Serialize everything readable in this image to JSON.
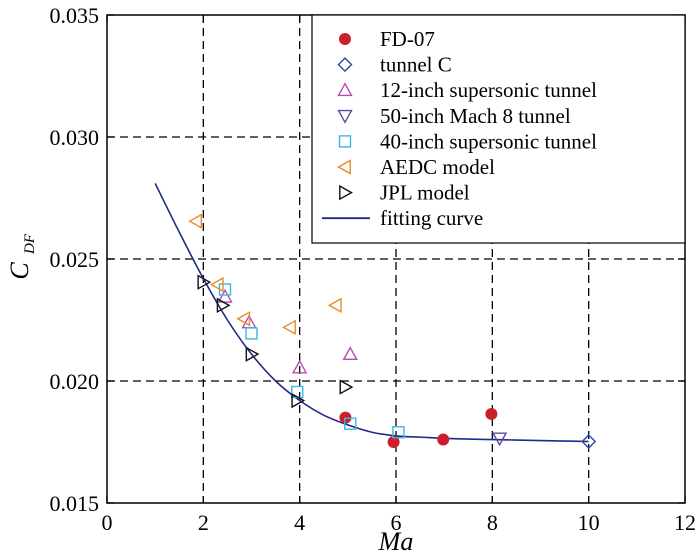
{
  "chart_data": {
    "type": "scatter",
    "xlabel": "Ma",
    "ylabel": {
      "main": "C",
      "sub": "DF"
    },
    "xlim": [
      0,
      12
    ],
    "ylim": [
      0.015,
      0.035
    ],
    "xticks": [
      0,
      2,
      4,
      6,
      8,
      10,
      12
    ],
    "xtick_labels": [
      "0",
      "2",
      "4",
      "6",
      "8",
      "10",
      "12"
    ],
    "yticks": [
      0.015,
      0.02,
      0.025,
      0.03,
      0.035
    ],
    "ytick_labels": [
      "0.015",
      "0.020",
      "0.025",
      "0.030",
      "0.035"
    ],
    "grid": "dashed at major ticks",
    "legend_position": "top-right",
    "series": [
      {
        "name": "FD-07",
        "marker": "filled-circle",
        "color": "#cc1f2a",
        "points": [
          [
            4.95,
            0.0185
          ],
          [
            5.95,
            0.0175
          ],
          [
            6.98,
            0.0176
          ],
          [
            7.98,
            0.01865
          ]
        ]
      },
      {
        "name": "tunnel C",
        "marker": "diamond",
        "color": "#2b4ba8",
        "points": [
          [
            10.0,
            0.01752
          ]
        ]
      },
      {
        "name": "12-inch supersonic tunnel",
        "marker": "triangle-up",
        "color": "#b24db8",
        "points": [
          [
            2.45,
            0.02345
          ],
          [
            2.95,
            0.0224
          ],
          [
            4.0,
            0.02055
          ],
          [
            5.05,
            0.0211
          ]
        ]
      },
      {
        "name": "50-inch Mach 8 tunnel",
        "marker": "triangle-down",
        "color": "#5a4aa0",
        "points": [
          [
            8.15,
            0.01765
          ]
        ]
      },
      {
        "name": "40-inch supersonic tunnel",
        "marker": "square",
        "color": "#3fb6e0",
        "points": [
          [
            2.45,
            0.02375
          ],
          [
            3.0,
            0.02195
          ],
          [
            3.95,
            0.01955
          ],
          [
            5.05,
            0.01825
          ],
          [
            6.05,
            0.0179
          ]
        ]
      },
      {
        "name": "AEDC model",
        "marker": "triangle-left",
        "color": "#e88a2a",
        "points": [
          [
            1.85,
            0.02655
          ],
          [
            2.3,
            0.02395
          ],
          [
            2.85,
            0.02255
          ],
          [
            3.8,
            0.0222
          ],
          [
            4.75,
            0.0231
          ]
        ]
      },
      {
        "name": "JPL model",
        "marker": "triangle-right",
        "color": "#111111",
        "points": [
          [
            2.0,
            0.02405
          ],
          [
            2.4,
            0.0231
          ],
          [
            3.0,
            0.0211
          ],
          [
            3.95,
            0.0192
          ],
          [
            4.95,
            0.01975
          ]
        ]
      },
      {
        "name": "fitting curve",
        "marker": "line",
        "color": "#1f2a8c",
        "x": [
          1.0,
          1.5,
          2.0,
          2.5,
          3.0,
          3.5,
          4.0,
          4.5,
          5.0,
          5.5,
          6.0,
          6.5,
          7.0,
          7.5,
          8.0,
          8.5,
          9.0,
          9.5,
          10.0
        ],
        "y": [
          0.0281,
          0.0261,
          0.0242,
          0.0225,
          0.0211,
          0.02,
          0.0192,
          0.0186,
          0.0182,
          0.0179,
          0.01775,
          0.0177,
          0.01765,
          0.01762,
          0.0176,
          0.01758,
          0.01756,
          0.01754,
          0.01752
        ]
      }
    ]
  }
}
